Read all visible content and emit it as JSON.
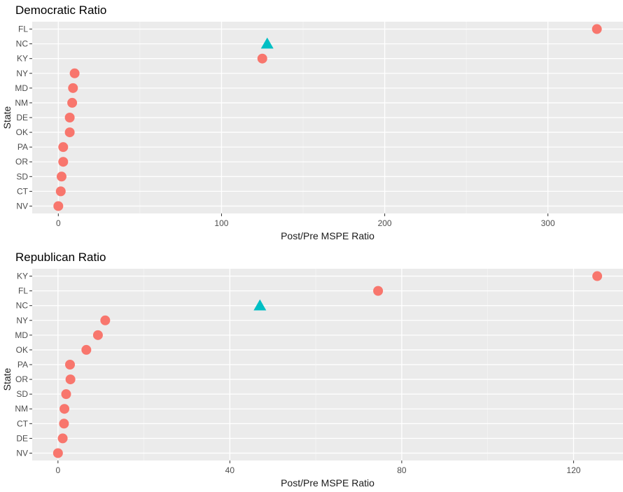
{
  "colors": {
    "panel_bg": "#ebebeb",
    "grid_major": "#ffffff",
    "grid_minor": "#f4f4f4",
    "tick_text": "#4d4d4d",
    "tick_mark": "#333333",
    "point_circle": "#f8766d",
    "point_triangle": "#00bfc4"
  },
  "chart_data": [
    {
      "type": "scatter",
      "title": "Democratic Ratio",
      "xlabel": "Post/Pre MSPE Ratio",
      "ylabel": "State",
      "categories": [
        "FL",
        "NC",
        "KY",
        "NY",
        "MD",
        "NM",
        "DE",
        "OK",
        "PA",
        "OR",
        "SD",
        "CT",
        "NV"
      ],
      "xlim": [
        -16,
        346
      ],
      "x_ticks": [
        0,
        100,
        200,
        300
      ],
      "x_tick_labels": [
        "0",
        "100",
        "200",
        "300"
      ],
      "grid": true,
      "legend": "none",
      "points": [
        {
          "state": "FL",
          "value": 330,
          "shape": "circle"
        },
        {
          "state": "NC",
          "value": 128,
          "shape": "triangle"
        },
        {
          "state": "KY",
          "value": 125,
          "shape": "circle"
        },
        {
          "state": "NY",
          "value": 10,
          "shape": "circle"
        },
        {
          "state": "MD",
          "value": 9,
          "shape": "circle"
        },
        {
          "state": "NM",
          "value": 8.5,
          "shape": "circle"
        },
        {
          "state": "DE",
          "value": 7,
          "shape": "circle"
        },
        {
          "state": "OK",
          "value": 7,
          "shape": "circle"
        },
        {
          "state": "PA",
          "value": 3,
          "shape": "circle"
        },
        {
          "state": "OR",
          "value": 3,
          "shape": "circle"
        },
        {
          "state": "SD",
          "value": 2,
          "shape": "circle"
        },
        {
          "state": "CT",
          "value": 1.5,
          "shape": "circle"
        },
        {
          "state": "NV",
          "value": 0,
          "shape": "circle"
        }
      ]
    },
    {
      "type": "scatter",
      "title": "Republican Ratio",
      "xlabel": "Post/Pre MSPE Ratio",
      "ylabel": "State",
      "categories": [
        "KY",
        "FL",
        "NC",
        "NY",
        "MD",
        "OK",
        "PA",
        "OR",
        "SD",
        "NM",
        "CT",
        "DE",
        "NV"
      ],
      "xlim": [
        -6,
        131.5
      ],
      "x_ticks": [
        0,
        40,
        80,
        120
      ],
      "x_tick_labels": [
        "0",
        "40",
        "80",
        "120"
      ],
      "grid": true,
      "legend": "none",
      "points": [
        {
          "state": "KY",
          "value": 125.5,
          "shape": "circle"
        },
        {
          "state": "FL",
          "value": 74.5,
          "shape": "circle"
        },
        {
          "state": "NC",
          "value": 47,
          "shape": "triangle"
        },
        {
          "state": "NY",
          "value": 11,
          "shape": "circle"
        },
        {
          "state": "MD",
          "value": 9.3,
          "shape": "circle"
        },
        {
          "state": "OK",
          "value": 6.6,
          "shape": "circle"
        },
        {
          "state": "PA",
          "value": 2.8,
          "shape": "circle"
        },
        {
          "state": "OR",
          "value": 2.9,
          "shape": "circle"
        },
        {
          "state": "SD",
          "value": 1.9,
          "shape": "circle"
        },
        {
          "state": "NM",
          "value": 1.5,
          "shape": "circle"
        },
        {
          "state": "CT",
          "value": 1.4,
          "shape": "circle"
        },
        {
          "state": "DE",
          "value": 1.1,
          "shape": "circle"
        },
        {
          "state": "NV",
          "value": 0,
          "shape": "circle"
        }
      ]
    }
  ]
}
